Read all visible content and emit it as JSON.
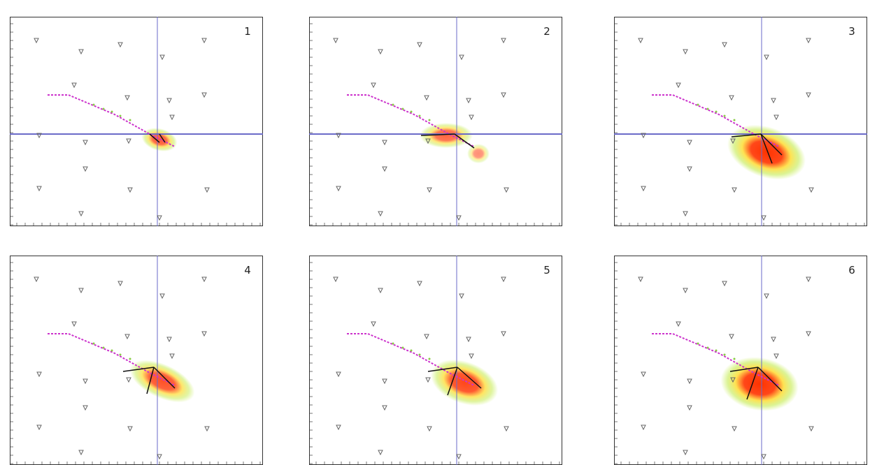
{
  "colors": {
    "trajectory": "#cc33cc",
    "trajectory_dots": "#88cc44",
    "axis_line": "#6a6ac8",
    "density_low": "#ccee66",
    "density_mid": "#ffdd33",
    "density_high": "#ff3300",
    "frame": "#333333"
  },
  "chart_data": [
    {
      "type": "heatmap",
      "panel_label": "1",
      "title": "",
      "shows_horizontal_axis_line": true
    },
    {
      "type": "heatmap",
      "panel_label": "2",
      "title": "",
      "shows_horizontal_axis_line": true
    },
    {
      "type": "heatmap",
      "panel_label": "3",
      "title": "",
      "shows_horizontal_axis_line": true
    },
    {
      "type": "heatmap",
      "panel_label": "4",
      "title": "",
      "shows_horizontal_axis_line": false
    },
    {
      "type": "heatmap",
      "panel_label": "5",
      "title": "",
      "shows_horizontal_axis_line": false
    },
    {
      "type": "heatmap",
      "panel_label": "6",
      "title": "",
      "shows_horizontal_axis_line": false
    }
  ]
}
